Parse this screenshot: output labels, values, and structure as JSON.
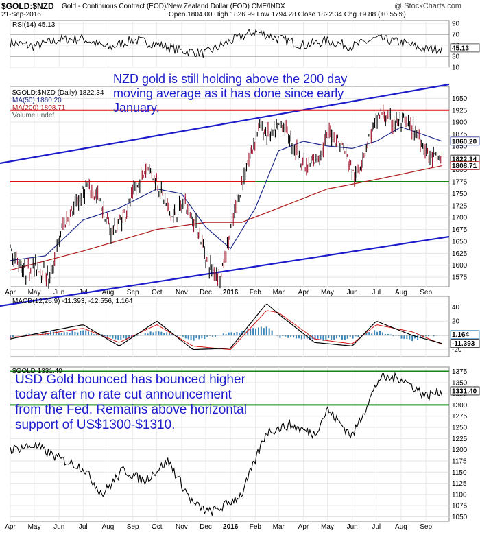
{
  "header": {
    "symbol": "$GOLD:$NZD",
    "description": "Gold - Continuous Contract (EOD)/New Zealand Dollar (EOD)  CME/INDX",
    "date": "21-Sep-2016",
    "ohlc": "Open 1804.00  High 1826.99  Low 1794.28  Close 1822.34  Chg +9.88 (+0.55%)",
    "watermark": "@ StockCharts.com"
  },
  "annotations": {
    "nzd_note": "NZD gold is still holding above the 200 day\nmoving average as it has done since early\nJanuary.",
    "usd_note": "USD Gold bounced has bounced higher\ntoday after no rate cut announcement\nfrom the Fed. Remains above horizontal\nsupport of US$1300-$1310."
  },
  "colors": {
    "price": "#000000",
    "ma50": "#1f2a8c",
    "ma200": "#b01a1a",
    "channel": "#1c1ccc",
    "resistance": "#dd1111",
    "support": "#118811",
    "macd_hist": "#3a86b8",
    "note_text": "#1c1ccc"
  },
  "chart_data": [
    {
      "type": "line",
      "panel": "RSI",
      "legend": "RSI(14) 45.13",
      "last_label": "45.13",
      "ylim": [
        10,
        95
      ],
      "yticks": [
        10,
        30,
        50,
        70,
        90
      ],
      "reference_lines": [
        30,
        70
      ],
      "x": [
        "2015-04-01",
        "2015-05-01",
        "2015-06-01",
        "2015-07-01",
        "2015-08-01",
        "2015-09-01",
        "2015-10-01",
        "2015-11-01",
        "2015-12-01",
        "2016-01-01",
        "2016-02-01",
        "2016-03-01",
        "2016-04-01",
        "2016-05-01",
        "2016-06-01",
        "2016-07-01",
        "2016-08-01",
        "2016-09-01",
        "2016-09-21"
      ],
      "values": [
        55,
        48,
        60,
        62,
        45,
        60,
        52,
        40,
        35,
        58,
        75,
        62,
        50,
        58,
        48,
        62,
        55,
        42,
        45.13
      ]
    },
    {
      "type": "line",
      "panel": "Gold in NZD",
      "legend": [
        "$GOLD:$NZD (Daily) 1822.34",
        "MA(50) 1860.20",
        "MA(200) 1808.71",
        "Volume undef"
      ],
      "last_labels": {
        "price": "1822.34",
        "ma50": "1860.20",
        "ma200": "1808.71"
      },
      "ylim": [
        1555,
        1975
      ],
      "yticks": [
        1575,
        1600,
        1625,
        1650,
        1675,
        1700,
        1725,
        1750,
        1775,
        1800,
        1825,
        1850,
        1875,
        1900,
        1925,
        1950
      ],
      "x_ticks": [
        "Apr",
        "May",
        "Jun",
        "Jul",
        "Aug",
        "Sep",
        "Oct",
        "Nov",
        "Dec",
        "2016",
        "Feb",
        "Mar",
        "Apr",
        "May",
        "Jun",
        "Jul",
        "Aug",
        "Sep"
      ],
      "series": [
        {
          "name": "$GOLD:$NZD",
          "x": [
            "2015-04-01",
            "2015-04-20",
            "2015-05-05",
            "2015-05-20",
            "2015-06-05",
            "2015-06-20",
            "2015-07-05",
            "2015-07-20",
            "2015-08-05",
            "2015-08-20",
            "2015-09-05",
            "2015-09-20",
            "2015-10-05",
            "2015-10-20",
            "2015-11-05",
            "2015-11-20",
            "2015-12-05",
            "2015-12-20",
            "2016-01-05",
            "2016-01-20",
            "2016-02-05",
            "2016-02-20",
            "2016-03-05",
            "2016-03-20",
            "2016-04-05",
            "2016-04-20",
            "2016-05-05",
            "2016-05-20",
            "2016-06-05",
            "2016-06-20",
            "2016-07-05",
            "2016-07-20",
            "2016-08-05",
            "2016-08-20",
            "2016-09-05",
            "2016-09-21"
          ],
          "values": [
            1630,
            1585,
            1600,
            1570,
            1680,
            1720,
            1765,
            1740,
            1670,
            1700,
            1760,
            1810,
            1760,
            1700,
            1730,
            1680,
            1600,
            1575,
            1700,
            1800,
            1890,
            1870,
            1900,
            1850,
            1800,
            1830,
            1880,
            1850,
            1780,
            1860,
            1920,
            1900,
            1900,
            1880,
            1830,
            1822.34
          ]
        },
        {
          "name": "MA(50)",
          "x": [
            "2015-04-01",
            "2015-05-15",
            "2015-07-01",
            "2015-08-15",
            "2015-10-01",
            "2015-11-01",
            "2015-12-01",
            "2016-01-01",
            "2016-02-01",
            "2016-03-01",
            "2016-04-01",
            "2016-05-01",
            "2016-06-01",
            "2016-07-01",
            "2016-08-01",
            "2016-09-21"
          ],
          "values": [
            1610,
            1620,
            1695,
            1720,
            1760,
            1750,
            1680,
            1635,
            1720,
            1840,
            1860,
            1850,
            1845,
            1860,
            1890,
            1860.2
          ]
        },
        {
          "name": "MA(200)",
          "x": [
            "2015-04-01",
            "2015-07-01",
            "2015-10-01",
            "2015-12-01",
            "2016-01-15",
            "2016-03-01",
            "2016-05-01",
            "2016-07-01",
            "2016-09-21"
          ],
          "values": [
            1590,
            1630,
            1675,
            1690,
            1690,
            1720,
            1760,
            1780,
            1808.71
          ]
        }
      ],
      "horizontal_lines": [
        1925,
        1775
      ]
    },
    {
      "type": "line",
      "panel": "MACD",
      "legend": "MACD(12,26,9) -11.393, -12.556, 1.164",
      "last_labels": {
        "macd": "-11.393",
        "histogram": "1.164"
      },
      "ylim": [
        -30,
        55
      ],
      "yticks": [
        -20,
        0,
        20,
        40
      ],
      "x": [
        "2015-04-01",
        "2015-05-15",
        "2015-07-01",
        "2015-08-15",
        "2015-10-01",
        "2015-11-15",
        "2016-01-01",
        "2016-02-15",
        "2016-03-01",
        "2016-04-15",
        "2016-06-01",
        "2016-07-01",
        "2016-08-15",
        "2016-09-21"
      ],
      "series": [
        {
          "name": "MACD",
          "values": [
            -5,
            5,
            15,
            -15,
            20,
            -20,
            -18,
            45,
            30,
            -10,
            -15,
            20,
            0,
            -11.393
          ]
        },
        {
          "name": "Signal",
          "values": [
            -3,
            2,
            10,
            -10,
            15,
            -15,
            -20,
            35,
            32,
            -5,
            -12,
            15,
            5,
            -12.556
          ]
        }
      ]
    },
    {
      "type": "line",
      "panel": "Gold in USD",
      "legend": "$GOLD 1331.40",
      "last_label": "1331.40",
      "ylim": [
        1040,
        1385
      ],
      "yticks": [
        1050,
        1075,
        1100,
        1125,
        1150,
        1175,
        1200,
        1225,
        1250,
        1275,
        1300,
        1325,
        1350,
        1375
      ],
      "x_ticks": [
        "Apr",
        "May",
        "Jun",
        "Jul",
        "Aug",
        "Sep",
        "Oct",
        "Nov",
        "Dec",
        "2016",
        "Feb",
        "Mar",
        "Apr",
        "May",
        "Jun",
        "Jul",
        "Aug",
        "Sep"
      ],
      "x": [
        "2015-04-01",
        "2015-05-01",
        "2015-06-01",
        "2015-07-01",
        "2015-07-25",
        "2015-08-20",
        "2015-09-15",
        "2015-10-15",
        "2015-11-15",
        "2015-12-05",
        "2015-12-20",
        "2016-01-15",
        "2016-02-15",
        "2016-03-15",
        "2016-04-15",
        "2016-05-01",
        "2016-06-01",
        "2016-07-05",
        "2016-08-01",
        "2016-09-01",
        "2016-09-21"
      ],
      "values": [
        1200,
        1210,
        1180,
        1160,
        1100,
        1155,
        1130,
        1175,
        1080,
        1060,
        1070,
        1100,
        1240,
        1255,
        1235,
        1290,
        1230,
        1360,
        1360,
        1320,
        1331.4
      ],
      "horizontal_lines": [
        1375,
        1300
      ]
    }
  ]
}
